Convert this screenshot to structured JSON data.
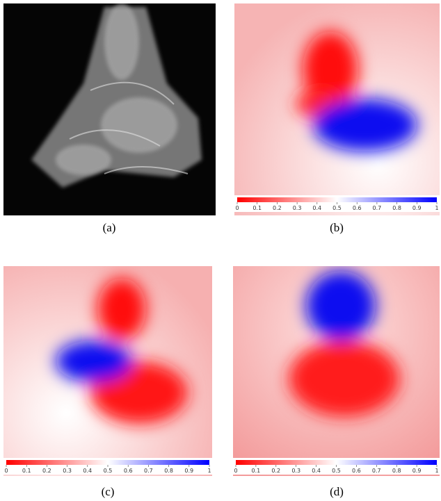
{
  "panels": [
    {
      "caption": "(a)"
    },
    {
      "caption": "(b)",
      "colorbar_ticks": [
        0,
        0.1,
        0.2,
        0.3,
        0.4,
        0.5,
        0.6,
        0.7,
        0.8,
        0.9,
        1
      ]
    },
    {
      "caption": "(c)",
      "colorbar_ticks": [
        0,
        0.1,
        0.2,
        0.3,
        0.4,
        0.5,
        0.6,
        0.7,
        0.8,
        0.9,
        1
      ]
    },
    {
      "caption": "(d)",
      "colorbar_ticks": [
        0,
        0.1,
        0.2,
        0.3,
        0.4,
        0.5,
        0.6,
        0.7,
        0.8,
        0.9,
        1
      ]
    }
  ]
}
